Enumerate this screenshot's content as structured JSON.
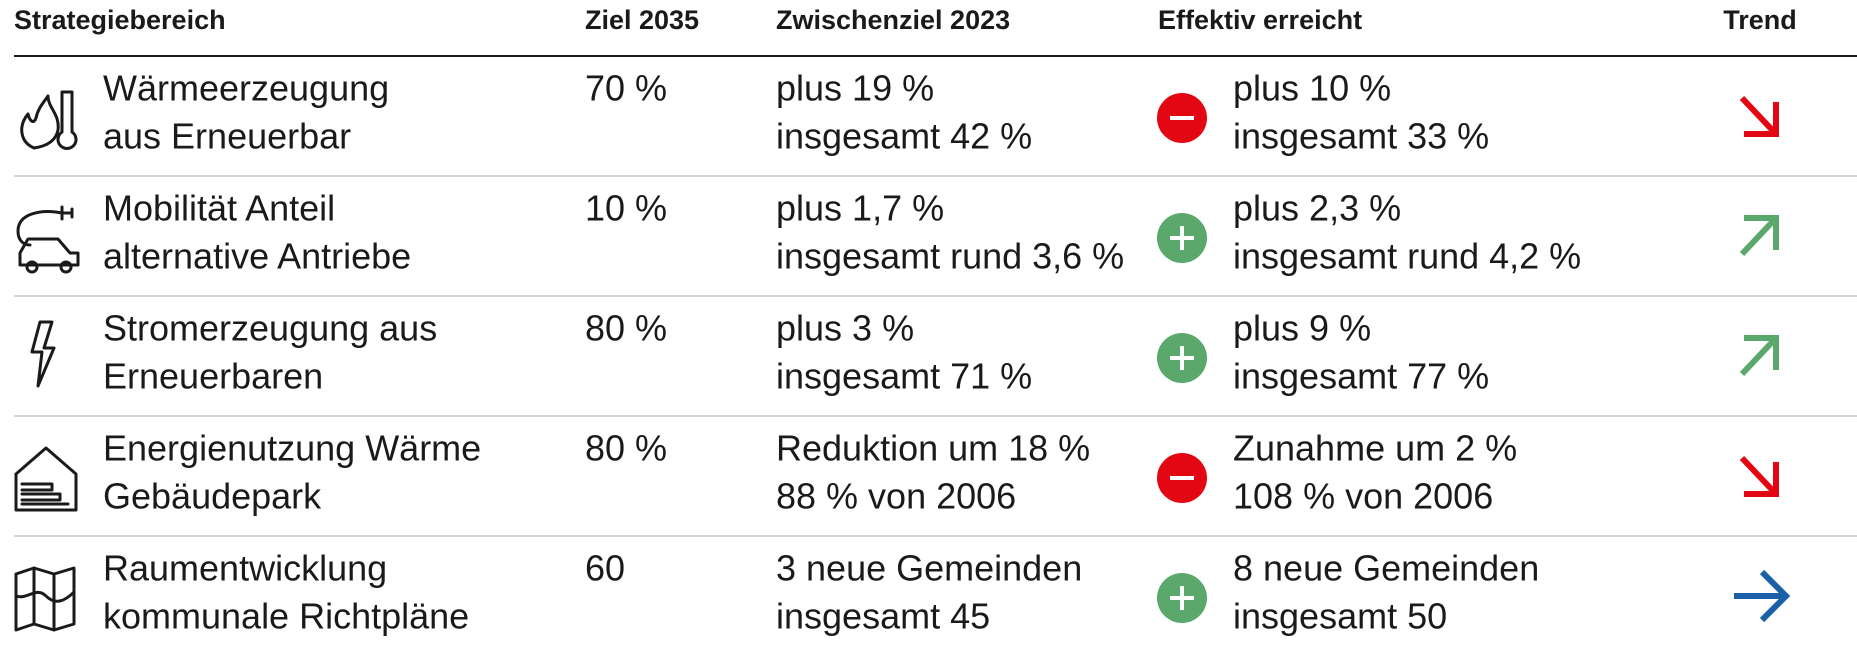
{
  "header": [
    "Strategiebereich",
    "Ziel 2035",
    "Zwischenziel 2023",
    "Effektiv erreicht",
    "Trend"
  ],
  "rows": [
    {
      "label": [
        "Wärmeerzeugung",
        "aus Erneuerbar"
      ],
      "ziel": "70 %",
      "zwischenziel": [
        "plus 19 %",
        "insgesamt 42 %"
      ],
      "status": "negative",
      "effektiv": [
        "plus 10 %",
        "insgesamt 33 %"
      ],
      "trend": "down",
      "icon": "heat"
    },
    {
      "label": [
        "Mobilität Anteil",
        "alternative Antriebe"
      ],
      "ziel": "10 %",
      "zwischenziel": [
        "plus 1,7 %",
        "insgesamt rund 3,6 %"
      ],
      "status": "positive",
      "effektiv": [
        "plus 2,3 %",
        "insgesamt rund 4,2 %"
      ],
      "trend": "up",
      "icon": "car"
    },
    {
      "label": [
        "Stromerzeugung aus",
        "Erneuerbaren"
      ],
      "ziel": "80 %",
      "zwischenziel": [
        "plus 3 %",
        "insgesamt 71 %"
      ],
      "status": "positive",
      "effektiv": [
        "plus 9 %",
        "insgesamt 77 %"
      ],
      "trend": "up",
      "icon": "bolt"
    },
    {
      "label": [
        "Energienutzung Wärme",
        "Gebäudepark"
      ],
      "ziel": "80 %",
      "zwischenziel": [
        "Reduktion um 18 %",
        "88 % von 2006"
      ],
      "status": "negative",
      "effektiv": [
        "Zunahme um 2 %",
        "108 % von 2006"
      ],
      "trend": "down",
      "icon": "house"
    },
    {
      "label": [
        "Raumentwicklung",
        "kommunale Richtpläne"
      ],
      "ziel": "60",
      "zwischenziel": [
        "3 neue Gemeinden",
        "insgesamt 45"
      ],
      "status": "positive",
      "effektiv": [
        "8 neue Gemeinden",
        "insgesamt 50"
      ],
      "trend": "right",
      "icon": "map"
    }
  ]
}
